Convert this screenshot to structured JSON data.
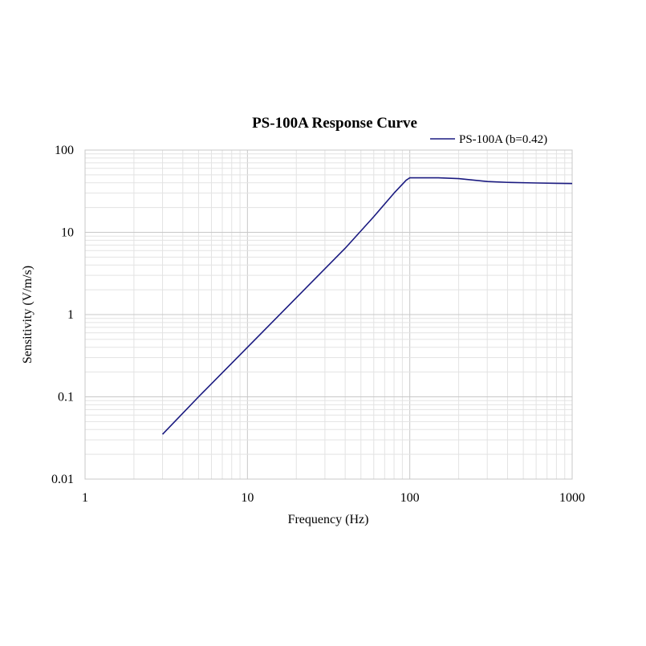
{
  "chart_data": {
    "type": "line",
    "title": "PS-100A Response Curve",
    "xlabel": "Frequency (Hz)",
    "ylabel": "Sensitivity  (V/m/s)",
    "xscale": "log",
    "yscale": "log",
    "xlim": [
      1,
      1000
    ],
    "ylim": [
      0.01,
      100
    ],
    "x_ticks": [
      "1",
      "10",
      "100",
      "1000"
    ],
    "y_ticks": [
      "0.01",
      "0.1",
      "1",
      "10",
      "100"
    ],
    "grid": true,
    "legend_position": "top-right",
    "series": [
      {
        "name": "PS-100A (b=0.42)",
        "color": "#1a1a80",
        "x": [
          3,
          5,
          10,
          20,
          40,
          60,
          80,
          95,
          100,
          150,
          200,
          300,
          400,
          600,
          800,
          1000
        ],
        "y": [
          0.035,
          0.1,
          0.4,
          1.6,
          6.4,
          15.5,
          30,
          43,
          46,
          46,
          45,
          41.5,
          40.5,
          39.8,
          39.4,
          39.2
        ]
      }
    ]
  }
}
